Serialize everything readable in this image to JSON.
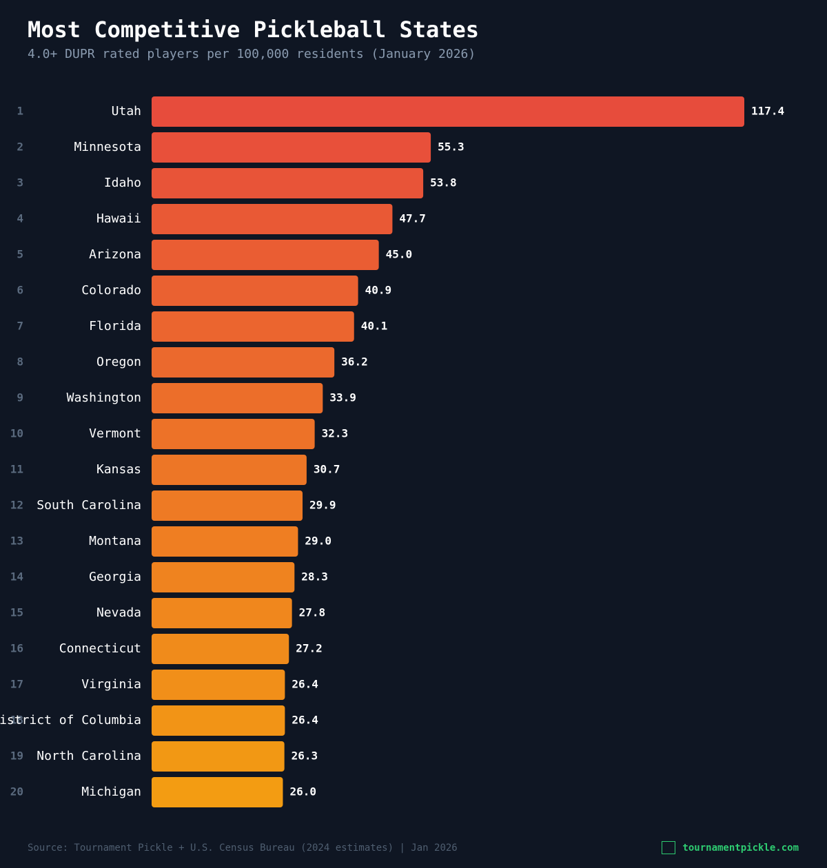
{
  "chart_data": {
    "type": "bar",
    "orientation": "horizontal",
    "title": "Most Competitive Pickleball States",
    "subtitle": "4.0+ DUPR rated players per 100,000 residents (January 2026)",
    "ranks": [
      1,
      2,
      3,
      4,
      5,
      6,
      7,
      8,
      9,
      10,
      11,
      12,
      13,
      14,
      15,
      16,
      17,
      18,
      19,
      20
    ],
    "categories": [
      "Utah",
      "Minnesota",
      "Idaho",
      "Hawaii",
      "Arizona",
      "Colorado",
      "Florida",
      "Oregon",
      "Washington",
      "Vermont",
      "Kansas",
      "South Carolina",
      "Montana",
      "Georgia",
      "Nevada",
      "Connecticut",
      "Virginia",
      "District of Columbia",
      "North Carolina",
      "Michigan"
    ],
    "values": [
      117.4,
      55.3,
      53.8,
      47.7,
      45.0,
      40.9,
      40.1,
      36.2,
      33.9,
      32.3,
      30.7,
      29.9,
      29.0,
      28.3,
      27.8,
      27.2,
      26.4,
      26.4,
      26.3,
      26.0
    ],
    "value_labels": [
      "117.4",
      "55.3",
      "53.8",
      "47.7",
      "45.0",
      "40.9",
      "40.1",
      "36.2",
      "33.9",
      "32.3",
      "30.7",
      "29.9",
      "29.0",
      "28.3",
      "27.8",
      "27.2",
      "26.4",
      "26.4",
      "26.3",
      "26.0"
    ],
    "colors": [
      "#e74c3c",
      "#e8503a",
      "#e85438",
      "#e95935",
      "#ea5d33",
      "#ea6131",
      "#eb652f",
      "#eb692d",
      "#ec6e2a",
      "#ed7228",
      "#ed7626",
      "#ee7a24",
      "#ef7e22",
      "#ef831f",
      "#f0871d",
      "#f08b1b",
      "#f18f19",
      "#f29416",
      "#f29814",
      "#f39c12"
    ],
    "source": "Source: Tournament Pickle + U.S. Census Bureau (2024 estimates) | Jan 2026",
    "website": "tournamentpickle.com"
  }
}
